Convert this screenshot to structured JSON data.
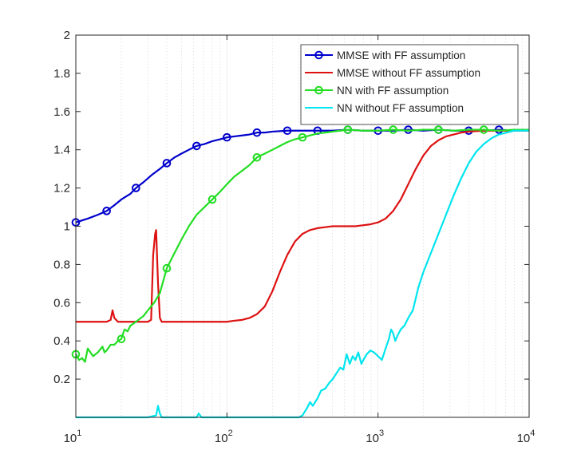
{
  "chart_data": {
    "type": "line",
    "title": "",
    "xlabel": "",
    "ylabel": "",
    "xscale": "log",
    "xlim": [
      10,
      10000
    ],
    "ylim": [
      0,
      2
    ],
    "grid": {
      "x_minor": true,
      "y": false
    },
    "legend_position": "top-right",
    "x_ticks": [
      {
        "base": "10",
        "exp": "1"
      },
      {
        "base": "10",
        "exp": "2"
      },
      {
        "base": "10",
        "exp": "3"
      },
      {
        "base": "10",
        "exp": "4"
      }
    ],
    "y_ticks": [
      "0.2",
      "0.4",
      "0.6",
      "0.8",
      "1",
      "1.2",
      "1.4",
      "1.6",
      "1.8",
      "2"
    ],
    "series": [
      {
        "name": "MMSE with FF assumption",
        "color": "#0000cc",
        "marker": "circle",
        "points": [
          [
            10,
            1.02
          ],
          [
            12,
            1.04
          ],
          [
            14,
            1.06
          ],
          [
            16,
            1.08
          ],
          [
            18,
            1.11
          ],
          [
            20,
            1.14
          ],
          [
            23,
            1.17
          ],
          [
            25,
            1.2
          ],
          [
            28,
            1.23
          ],
          [
            32,
            1.27
          ],
          [
            36,
            1.3
          ],
          [
            40,
            1.33
          ],
          [
            45,
            1.36
          ],
          [
            50,
            1.38
          ],
          [
            56,
            1.4
          ],
          [
            63,
            1.42
          ],
          [
            71,
            1.43
          ],
          [
            80,
            1.445
          ],
          [
            90,
            1.455
          ],
          [
            100,
            1.465
          ],
          [
            112,
            1.47
          ],
          [
            126,
            1.475
          ],
          [
            141,
            1.48
          ],
          [
            158,
            1.49
          ],
          [
            178,
            1.49
          ],
          [
            200,
            1.495
          ],
          [
            251,
            1.5
          ],
          [
            316,
            1.5
          ],
          [
            398,
            1.5
          ],
          [
            501,
            1.5
          ],
          [
            631,
            1.505
          ],
          [
            794,
            1.5
          ],
          [
            1000,
            1.5
          ],
          [
            1259,
            1.5
          ],
          [
            1585,
            1.505
          ],
          [
            1995,
            1.5
          ],
          [
            2512,
            1.505
          ],
          [
            3162,
            1.5
          ],
          [
            3981,
            1.5
          ],
          [
            5012,
            1.5
          ],
          [
            6310,
            1.505
          ],
          [
            7943,
            1.5
          ],
          [
            10000,
            1.505
          ]
        ],
        "markers_at": [
          [
            10,
            1.02
          ],
          [
            16,
            1.08
          ],
          [
            25,
            1.2
          ],
          [
            40,
            1.33
          ],
          [
            63,
            1.42
          ],
          [
            100,
            1.465
          ],
          [
            158,
            1.49
          ],
          [
            251,
            1.5
          ],
          [
            398,
            1.5
          ],
          [
            631,
            1.505
          ],
          [
            1000,
            1.5
          ],
          [
            1585,
            1.505
          ],
          [
            2512,
            1.505
          ],
          [
            3981,
            1.5
          ],
          [
            6310,
            1.505
          ]
        ]
      },
      {
        "name": "MMSE without FF assumption",
        "color": "#dd1111",
        "marker": "none",
        "points": [
          [
            10,
            0.5
          ],
          [
            11,
            0.5
          ],
          [
            12,
            0.5
          ],
          [
            13,
            0.5
          ],
          [
            14,
            0.5
          ],
          [
            15,
            0.5
          ],
          [
            16,
            0.5
          ],
          [
            17,
            0.51
          ],
          [
            17.5,
            0.56
          ],
          [
            18,
            0.52
          ],
          [
            19,
            0.5
          ],
          [
            20,
            0.5
          ],
          [
            22,
            0.5
          ],
          [
            24,
            0.5
          ],
          [
            26,
            0.5
          ],
          [
            28,
            0.5
          ],
          [
            30,
            0.5
          ],
          [
            31.5,
            0.51
          ],
          [
            32.5,
            0.85
          ],
          [
            33.5,
            0.96
          ],
          [
            34,
            0.98
          ],
          [
            35,
            0.7
          ],
          [
            36,
            0.52
          ],
          [
            37,
            0.5
          ],
          [
            40,
            0.5
          ],
          [
            45,
            0.5
          ],
          [
            50,
            0.5
          ],
          [
            56,
            0.5
          ],
          [
            63,
            0.5
          ],
          [
            71,
            0.5
          ],
          [
            80,
            0.5
          ],
          [
            90,
            0.5
          ],
          [
            100,
            0.5
          ],
          [
            110,
            0.505
          ],
          [
            126,
            0.51
          ],
          [
            141,
            0.52
          ],
          [
            158,
            0.54
          ],
          [
            178,
            0.58
          ],
          [
            200,
            0.66
          ],
          [
            224,
            0.76
          ],
          [
            251,
            0.85
          ],
          [
            282,
            0.92
          ],
          [
            316,
            0.96
          ],
          [
            355,
            0.98
          ],
          [
            398,
            0.99
          ],
          [
            447,
            0.995
          ],
          [
            501,
            1.0
          ],
          [
            562,
            1.0
          ],
          [
            631,
            1.0
          ],
          [
            708,
            1.0
          ],
          [
            794,
            1.005
          ],
          [
            891,
            1.01
          ],
          [
            1000,
            1.02
          ],
          [
            1122,
            1.04
          ],
          [
            1259,
            1.08
          ],
          [
            1413,
            1.14
          ],
          [
            1585,
            1.22
          ],
          [
            1778,
            1.3
          ],
          [
            1995,
            1.37
          ],
          [
            2239,
            1.42
          ],
          [
            2512,
            1.45
          ],
          [
            2818,
            1.47
          ],
          [
            3162,
            1.48
          ],
          [
            3548,
            1.49
          ],
          [
            3981,
            1.495
          ],
          [
            5012,
            1.5
          ],
          [
            6310,
            1.5
          ],
          [
            7943,
            1.5
          ],
          [
            10000,
            1.5
          ]
        ]
      },
      {
        "name": "NN with FF assumption",
        "color": "#22dd22",
        "marker": "circle",
        "points": [
          [
            10,
            0.33
          ],
          [
            10.5,
            0.3
          ],
          [
            11,
            0.31
          ],
          [
            11.5,
            0.29
          ],
          [
            12,
            0.36
          ],
          [
            12.5,
            0.34
          ],
          [
            13,
            0.32
          ],
          [
            14,
            0.34
          ],
          [
            15,
            0.37
          ],
          [
            15.5,
            0.34
          ],
          [
            16,
            0.35
          ],
          [
            17,
            0.38
          ],
          [
            18,
            0.38
          ],
          [
            19,
            0.4
          ],
          [
            20,
            0.41
          ],
          [
            21,
            0.46
          ],
          [
            22,
            0.45
          ],
          [
            23,
            0.48
          ],
          [
            25,
            0.5
          ],
          [
            28,
            0.53
          ],
          [
            30,
            0.56
          ],
          [
            33,
            0.6
          ],
          [
            36,
            0.65
          ],
          [
            40,
            0.78
          ],
          [
            45,
            0.86
          ],
          [
            50,
            0.93
          ],
          [
            56,
            1.0
          ],
          [
            63,
            1.06
          ],
          [
            71,
            1.1
          ],
          [
            80,
            1.14
          ],
          [
            90,
            1.18
          ],
          [
            100,
            1.22
          ],
          [
            112,
            1.26
          ],
          [
            126,
            1.29
          ],
          [
            141,
            1.32
          ],
          [
            158,
            1.36
          ],
          [
            178,
            1.38
          ],
          [
            200,
            1.4
          ],
          [
            224,
            1.42
          ],
          [
            251,
            1.44
          ],
          [
            282,
            1.455
          ],
          [
            316,
            1.465
          ],
          [
            355,
            1.475
          ],
          [
            398,
            1.485
          ],
          [
            447,
            1.49
          ],
          [
            501,
            1.495
          ],
          [
            562,
            1.5
          ],
          [
            631,
            1.505
          ],
          [
            794,
            1.5
          ],
          [
            1000,
            1.5
          ],
          [
            1259,
            1.505
          ],
          [
            1585,
            1.5
          ],
          [
            1995,
            1.505
          ],
          [
            2512,
            1.505
          ],
          [
            3162,
            1.5
          ],
          [
            3981,
            1.505
          ],
          [
            5012,
            1.505
          ],
          [
            6310,
            1.5
          ],
          [
            7943,
            1.505
          ],
          [
            10000,
            1.505
          ]
        ],
        "markers_at": [
          [
            10,
            0.33
          ],
          [
            20,
            0.41
          ],
          [
            40,
            0.78
          ],
          [
            80,
            1.14
          ],
          [
            158,
            1.36
          ],
          [
            316,
            1.465
          ],
          [
            631,
            1.505
          ],
          [
            1259,
            1.505
          ],
          [
            2512,
            1.505
          ],
          [
            5012,
            1.505
          ]
        ]
      },
      {
        "name": "NN without FF assumption",
        "color": "#00e5ee",
        "marker": "none",
        "points": [
          [
            10,
            0.0
          ],
          [
            20,
            0.0
          ],
          [
            30,
            0.0
          ],
          [
            34,
            0.01
          ],
          [
            35,
            0.06
          ],
          [
            36,
            0.02
          ],
          [
            37,
            0.0
          ],
          [
            50,
            0.0
          ],
          [
            63,
            0.0
          ],
          [
            65,
            0.02
          ],
          [
            68,
            0.0
          ],
          [
            80,
            0.0
          ],
          [
            100,
            0.0
          ],
          [
            150,
            0.0
          ],
          [
            200,
            0.0
          ],
          [
            250,
            0.0
          ],
          [
            300,
            0.0
          ],
          [
            316,
            0.01
          ],
          [
            340,
            0.05
          ],
          [
            355,
            0.08
          ],
          [
            370,
            0.06
          ],
          [
            398,
            0.1
          ],
          [
            420,
            0.14
          ],
          [
            447,
            0.15
          ],
          [
            475,
            0.18
          ],
          [
            501,
            0.2
          ],
          [
            530,
            0.23
          ],
          [
            562,
            0.26
          ],
          [
            590,
            0.25
          ],
          [
            620,
            0.33
          ],
          [
            650,
            0.28
          ],
          [
            680,
            0.32
          ],
          [
            708,
            0.3
          ],
          [
            740,
            0.34
          ],
          [
            776,
            0.28
          ],
          [
            800,
            0.3
          ],
          [
            841,
            0.33
          ],
          [
            890,
            0.35
          ],
          [
            940,
            0.34
          ],
          [
            1000,
            0.32
          ],
          [
            1060,
            0.3
          ],
          [
            1122,
            0.36
          ],
          [
            1180,
            0.41
          ],
          [
            1220,
            0.46
          ],
          [
            1259,
            0.44
          ],
          [
            1300,
            0.4
          ],
          [
            1350,
            0.43
          ],
          [
            1413,
            0.46
          ],
          [
            1496,
            0.48
          ],
          [
            1585,
            0.52
          ],
          [
            1700,
            0.56
          ],
          [
            1850,
            0.68
          ],
          [
            1995,
            0.76
          ],
          [
            2239,
            0.86
          ],
          [
            2512,
            0.96
          ],
          [
            2818,
            1.06
          ],
          [
            3162,
            1.16
          ],
          [
            3548,
            1.25
          ],
          [
            3981,
            1.33
          ],
          [
            4467,
            1.39
          ],
          [
            5012,
            1.43
          ],
          [
            5623,
            1.46
          ],
          [
            6310,
            1.48
          ],
          [
            7079,
            1.49
          ],
          [
            7943,
            1.5
          ],
          [
            10000,
            1.5
          ]
        ]
      }
    ]
  }
}
